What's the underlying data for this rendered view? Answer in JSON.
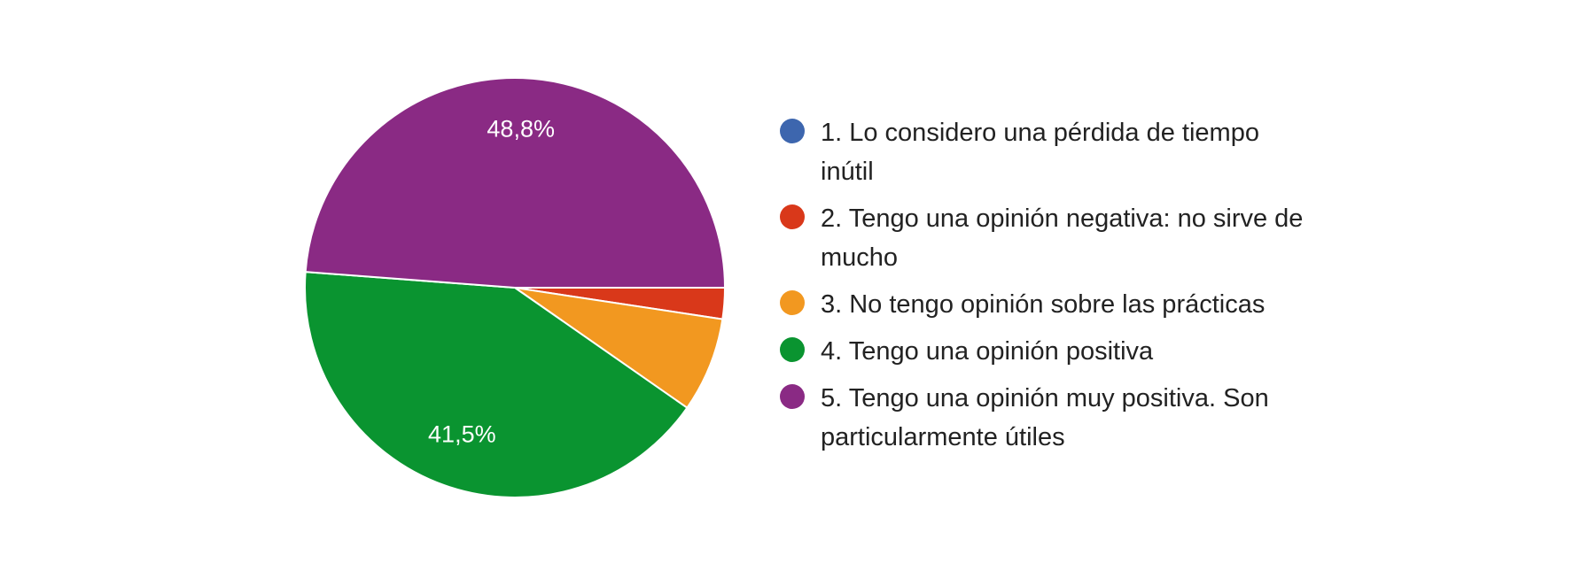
{
  "chart_data": {
    "type": "pie",
    "categories": [
      "1. Lo considero una pérdida de tiempo inútil",
      "2. Tengo una opinión negativa: no sirve de mucho",
      "3. No tengo opinión sobre las prácticas",
      "4. Tengo una opinión positiva",
      "5. Tengo una opinión muy positiva. Son particularmente útiles"
    ],
    "values": [
      0,
      2.4,
      7.3,
      41.5,
      48.8
    ],
    "value_labels": [
      null,
      null,
      null,
      "41,5%",
      "48,8%"
    ],
    "colors": [
      "#3d66ae",
      "#d9381a",
      "#f29820",
      "#0a9430",
      "#8a2a84"
    ]
  }
}
